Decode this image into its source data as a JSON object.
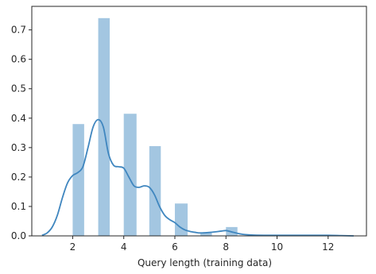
{
  "chart_data": {
    "type": "bar",
    "subtype": "histogram-with-kde",
    "title": "",
    "xlabel": "Query length (training data)",
    "ylabel": "",
    "xlim": [
      0.4,
      13.5
    ],
    "ylim": [
      0,
      0.78
    ],
    "x_ticks": [
      2,
      4,
      6,
      8,
      10,
      12
    ],
    "y_ticks": [
      0.0,
      0.1,
      0.2,
      0.3,
      0.4,
      0.5,
      0.6,
      0.7
    ],
    "x_tick_labels": [
      "2",
      "4",
      "6",
      "8",
      "10",
      "12"
    ],
    "y_tick_labels": [
      "0.0",
      "0.1",
      "0.2",
      "0.3",
      "0.4",
      "0.5",
      "0.6",
      "0.7"
    ],
    "grid": false,
    "bar_color": "#7fb0d5",
    "kde_color": "#3f86bf",
    "bins": [
      {
        "x0": 2.0,
        "x1": 2.45,
        "density": 0.38
      },
      {
        "x0": 3.0,
        "x1": 3.45,
        "density": 0.74
      },
      {
        "x0": 4.0,
        "x1": 4.5,
        "density": 0.415
      },
      {
        "x0": 5.0,
        "x1": 5.45,
        "density": 0.305
      },
      {
        "x0": 6.0,
        "x1": 6.5,
        "density": 0.11
      },
      {
        "x0": 7.0,
        "x1": 7.45,
        "density": 0.01
      },
      {
        "x0": 8.0,
        "x1": 8.45,
        "density": 0.03
      },
      {
        "x0": 12.0,
        "x1": 12.45,
        "density": 0.003
      }
    ],
    "kde": {
      "x": [
        0.8,
        1.0,
        1.2,
        1.4,
        1.6,
        1.8,
        2.0,
        2.2,
        2.4,
        2.6,
        2.8,
        3.0,
        3.2,
        3.4,
        3.6,
        3.8,
        4.0,
        4.2,
        4.4,
        4.6,
        4.8,
        5.0,
        5.2,
        5.4,
        5.6,
        5.8,
        6.0,
        6.2,
        6.4,
        6.6,
        6.8,
        7.0,
        7.4,
        7.8,
        8.0,
        8.2,
        8.6,
        9.0,
        9.5,
        10.0,
        11.0,
        12.0,
        12.5,
        13.0
      ],
      "y": [
        0.002,
        0.01,
        0.03,
        0.07,
        0.13,
        0.18,
        0.205,
        0.215,
        0.235,
        0.3,
        0.37,
        0.395,
        0.37,
        0.28,
        0.24,
        0.235,
        0.23,
        0.2,
        0.17,
        0.165,
        0.17,
        0.165,
        0.14,
        0.1,
        0.07,
        0.055,
        0.045,
        0.03,
        0.02,
        0.015,
        0.012,
        0.01,
        0.012,
        0.016,
        0.018,
        0.014,
        0.006,
        0.003,
        0.002,
        0.002,
        0.002,
        0.002,
        0.001,
        0.0
      ]
    }
  }
}
